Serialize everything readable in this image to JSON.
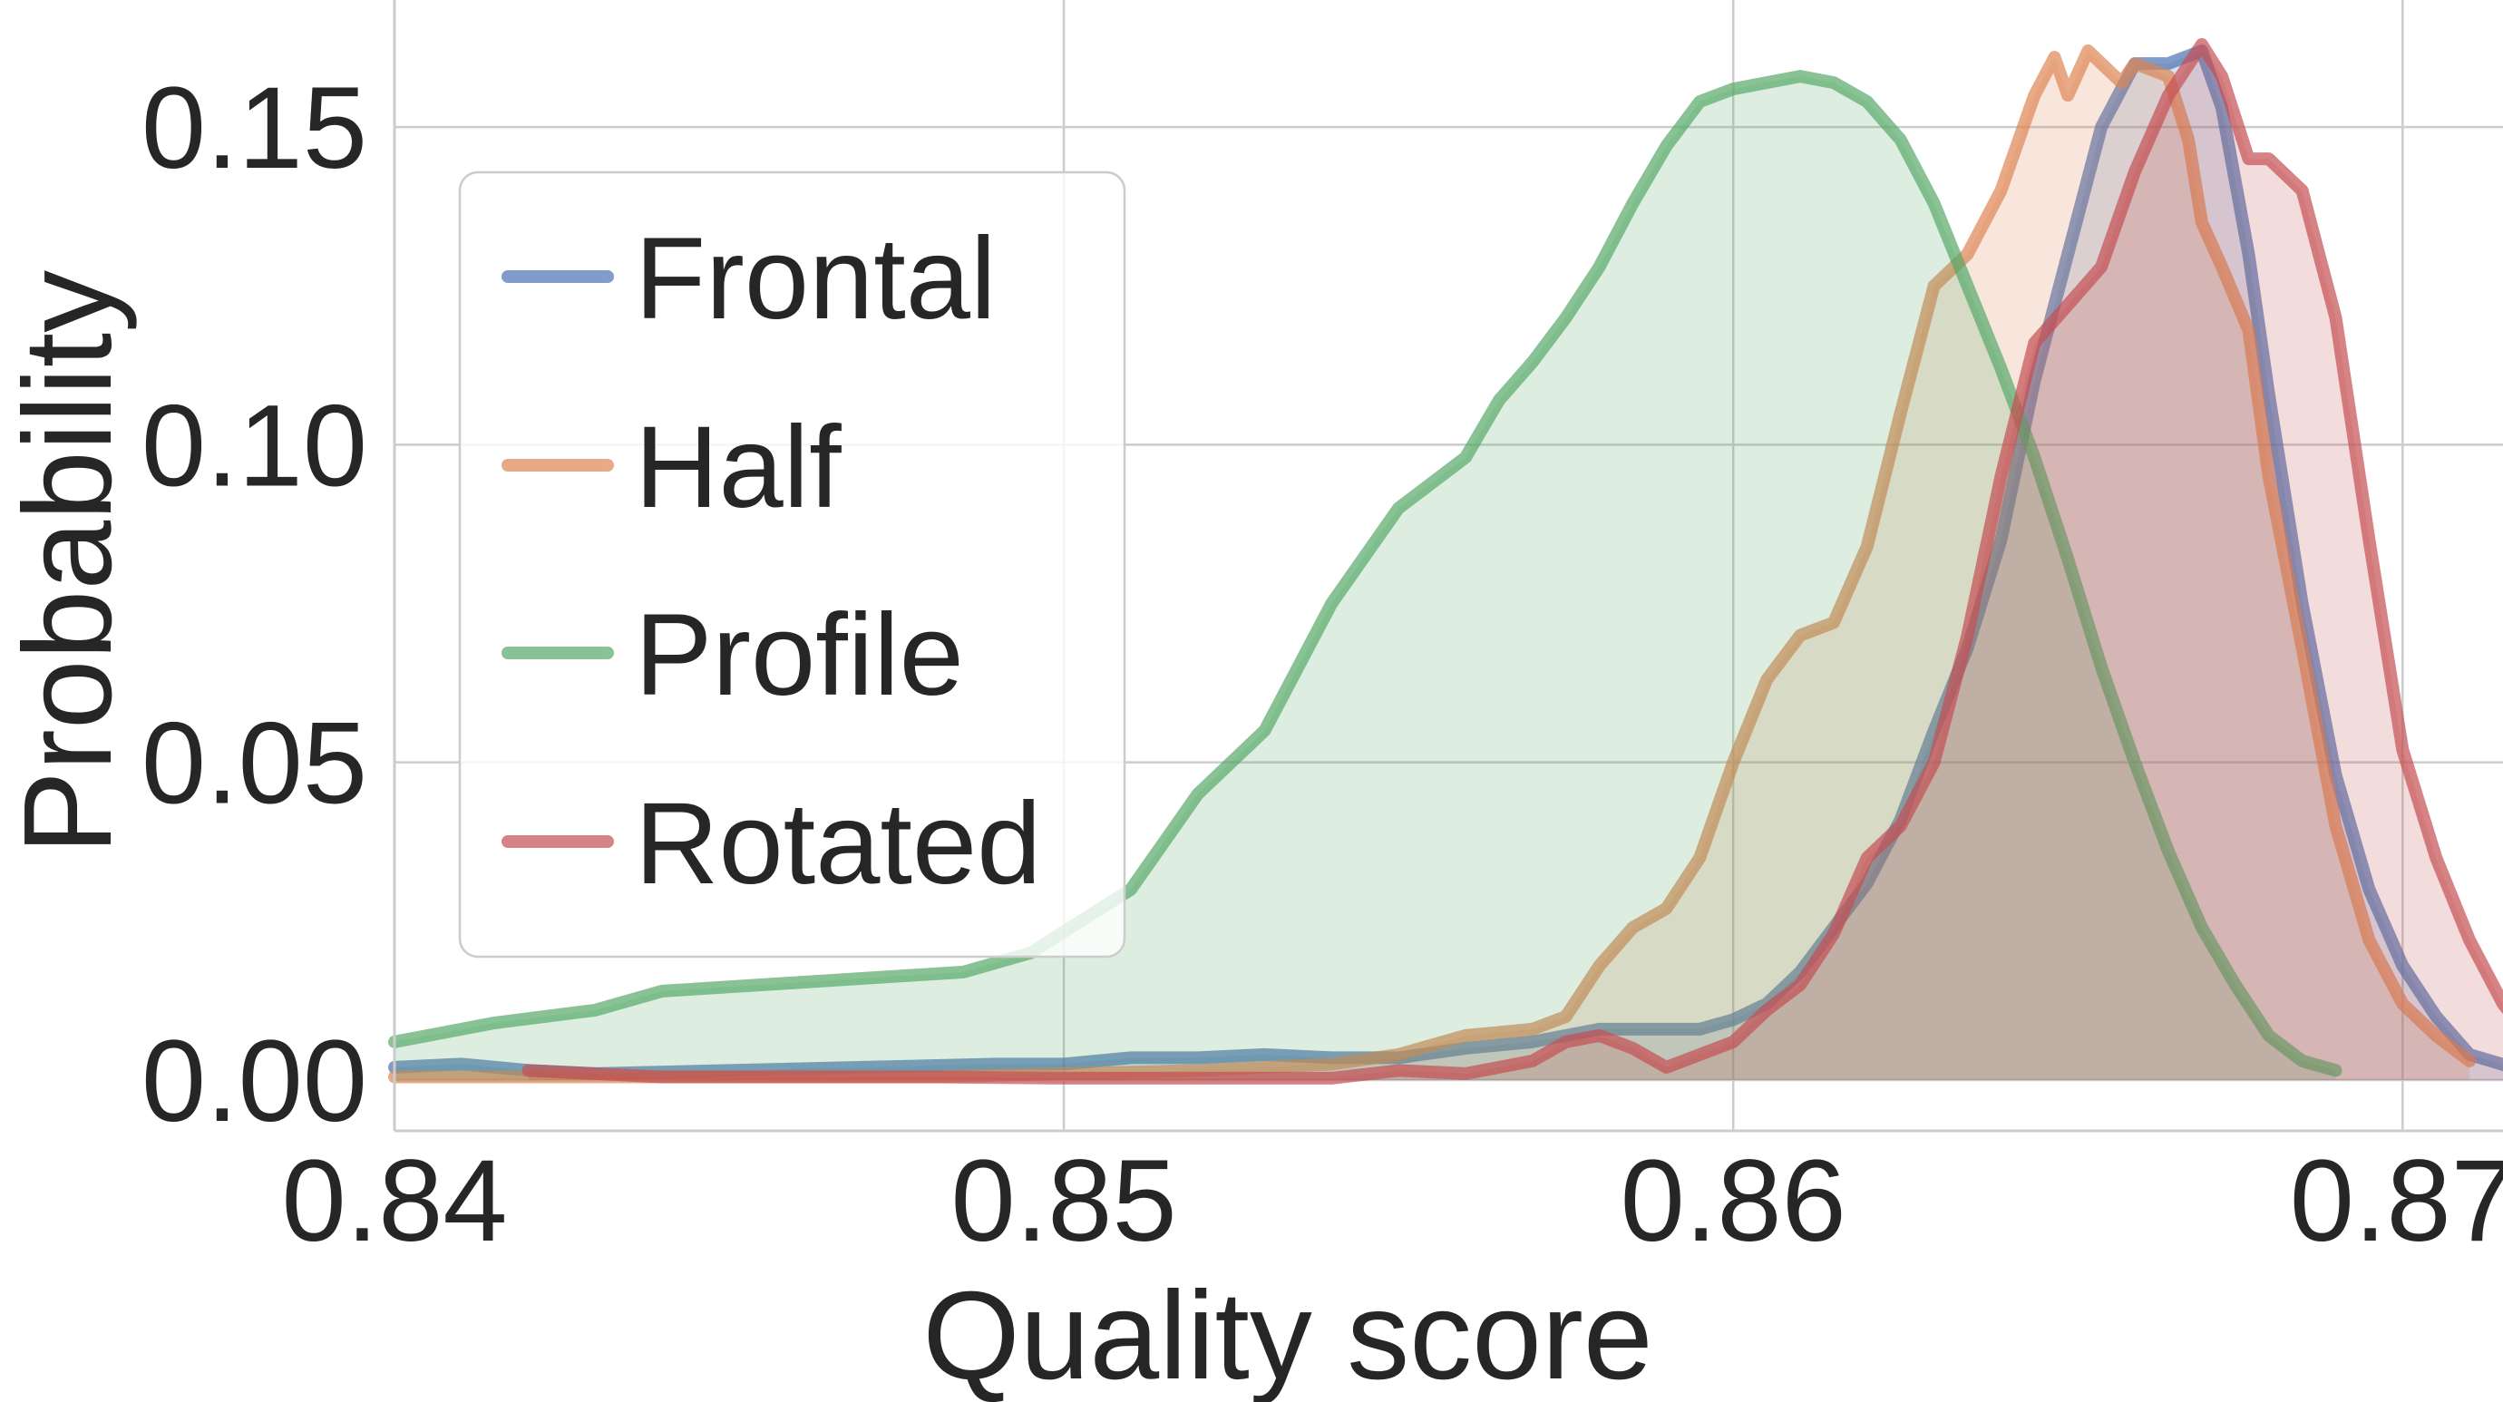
{
  "chart_data": {
    "type": "area",
    "xlabel": "Quality score",
    "ylabel": "Probability",
    "xlim": [
      0.84,
      0.8715
    ],
    "ylim": [
      -0.008,
      0.17
    ],
    "xticks": [
      0.84,
      0.85,
      0.86,
      0.87
    ],
    "yticks": [
      0.0,
      0.05,
      0.1,
      0.15
    ],
    "xtick_labels": [
      "0.84",
      "0.85",
      "0.86",
      "0.87"
    ],
    "ytick_labels": [
      "0.00",
      "0.05",
      "0.10",
      "0.15"
    ],
    "grid": true,
    "legend_position": "upper-left",
    "series": [
      {
        "name": "Frontal",
        "color": "#4c72b0",
        "points": [
          [
            0.84,
            0.002
          ],
          [
            0.841,
            0.0025
          ],
          [
            0.842,
            0.0015
          ],
          [
            0.843,
            0.001
          ],
          [
            0.845,
            0.0015
          ],
          [
            0.847,
            0.002
          ],
          [
            0.849,
            0.0025
          ],
          [
            0.85,
            0.0025
          ],
          [
            0.851,
            0.0035
          ],
          [
            0.852,
            0.0035
          ],
          [
            0.853,
            0.004
          ],
          [
            0.854,
            0.0035
          ],
          [
            0.855,
            0.0035
          ],
          [
            0.856,
            0.005
          ],
          [
            0.857,
            0.006
          ],
          [
            0.8575,
            0.007
          ],
          [
            0.858,
            0.008
          ],
          [
            0.8585,
            0.008
          ],
          [
            0.859,
            0.008
          ],
          [
            0.8595,
            0.008
          ],
          [
            0.86,
            0.0095
          ],
          [
            0.8605,
            0.012
          ],
          [
            0.861,
            0.017
          ],
          [
            0.8615,
            0.024
          ],
          [
            0.862,
            0.031
          ],
          [
            0.8625,
            0.041
          ],
          [
            0.863,
            0.055
          ],
          [
            0.8635,
            0.068
          ],
          [
            0.864,
            0.085
          ],
          [
            0.8645,
            0.11
          ],
          [
            0.865,
            0.13
          ],
          [
            0.8655,
            0.15
          ],
          [
            0.866,
            0.16
          ],
          [
            0.8665,
            0.16
          ],
          [
            0.867,
            0.162
          ],
          [
            0.8673,
            0.153
          ],
          [
            0.8677,
            0.13
          ],
          [
            0.868,
            0.108
          ],
          [
            0.8685,
            0.075
          ],
          [
            0.869,
            0.048
          ],
          [
            0.8695,
            0.03
          ],
          [
            0.87,
            0.018
          ],
          [
            0.8705,
            0.01
          ],
          [
            0.871,
            0.004
          ],
          [
            0.8718,
            0.0015
          ]
        ]
      },
      {
        "name": "Half",
        "color": "#dd8452",
        "points": [
          [
            0.84,
            0.0005
          ],
          [
            0.842,
            0.0005
          ],
          [
            0.845,
            0.0005
          ],
          [
            0.848,
            0.0005
          ],
          [
            0.85,
            0.001
          ],
          [
            0.852,
            0.0015
          ],
          [
            0.854,
            0.0025
          ],
          [
            0.855,
            0.004
          ],
          [
            0.856,
            0.007
          ],
          [
            0.857,
            0.008
          ],
          [
            0.8575,
            0.01
          ],
          [
            0.858,
            0.018
          ],
          [
            0.8585,
            0.024
          ],
          [
            0.859,
            0.027
          ],
          [
            0.8595,
            0.035
          ],
          [
            0.86,
            0.05
          ],
          [
            0.8605,
            0.063
          ],
          [
            0.861,
            0.07
          ],
          [
            0.8615,
            0.072
          ],
          [
            0.862,
            0.084
          ],
          [
            0.8625,
            0.105
          ],
          [
            0.863,
            0.125
          ],
          [
            0.8635,
            0.13
          ],
          [
            0.864,
            0.14
          ],
          [
            0.8645,
            0.155
          ],
          [
            0.8648,
            0.161
          ],
          [
            0.865,
            0.155
          ],
          [
            0.8653,
            0.162
          ],
          [
            0.8658,
            0.157
          ],
          [
            0.866,
            0.16
          ],
          [
            0.8665,
            0.158
          ],
          [
            0.8668,
            0.148
          ],
          [
            0.867,
            0.135
          ],
          [
            0.8673,
            0.128
          ],
          [
            0.8677,
            0.118
          ],
          [
            0.868,
            0.095
          ],
          [
            0.8685,
            0.068
          ],
          [
            0.869,
            0.04
          ],
          [
            0.8695,
            0.022
          ],
          [
            0.87,
            0.012
          ],
          [
            0.8705,
            0.007
          ],
          [
            0.871,
            0.003
          ]
        ]
      },
      {
        "name": "Profile",
        "color": "#55a868",
        "points": [
          [
            0.84,
            0.006
          ],
          [
            0.8415,
            0.009
          ],
          [
            0.843,
            0.011
          ],
          [
            0.844,
            0.014
          ],
          [
            0.8455,
            0.015
          ],
          [
            0.847,
            0.016
          ],
          [
            0.8485,
            0.017
          ],
          [
            0.8495,
            0.02
          ],
          [
            0.851,
            0.03
          ],
          [
            0.852,
            0.045
          ],
          [
            0.853,
            0.055
          ],
          [
            0.8535,
            0.065
          ],
          [
            0.854,
            0.075
          ],
          [
            0.855,
            0.09
          ],
          [
            0.856,
            0.098
          ],
          [
            0.8565,
            0.107
          ],
          [
            0.857,
            0.113
          ],
          [
            0.8575,
            0.12
          ],
          [
            0.858,
            0.128
          ],
          [
            0.8585,
            0.138
          ],
          [
            0.859,
            0.147
          ],
          [
            0.8595,
            0.154
          ],
          [
            0.86,
            0.156
          ],
          [
            0.8605,
            0.157
          ],
          [
            0.861,
            0.158
          ],
          [
            0.8615,
            0.157
          ],
          [
            0.862,
            0.154
          ],
          [
            0.8625,
            0.148
          ],
          [
            0.863,
            0.138
          ],
          [
            0.8635,
            0.125
          ],
          [
            0.864,
            0.112
          ],
          [
            0.8645,
            0.098
          ],
          [
            0.865,
            0.082
          ],
          [
            0.8655,
            0.065
          ],
          [
            0.866,
            0.05
          ],
          [
            0.8665,
            0.036
          ],
          [
            0.867,
            0.024
          ],
          [
            0.8675,
            0.015
          ],
          [
            0.868,
            0.007
          ],
          [
            0.8685,
            0.003
          ],
          [
            0.869,
            0.0015
          ]
        ]
      },
      {
        "name": "Rotated",
        "color": "#c44e52",
        "points": [
          [
            0.842,
            0.0015
          ],
          [
            0.844,
            0.0005
          ],
          [
            0.846,
            0.0005
          ],
          [
            0.848,
            0.0005
          ],
          [
            0.85,
            0.0003
          ],
          [
            0.852,
            0.0003
          ],
          [
            0.854,
            0.0003
          ],
          [
            0.855,
            0.0015
          ],
          [
            0.856,
            0.001
          ],
          [
            0.857,
            0.003
          ],
          [
            0.8575,
            0.006
          ],
          [
            0.858,
            0.007
          ],
          [
            0.8585,
            0.005
          ],
          [
            0.859,
            0.002
          ],
          [
            0.8595,
            0.004
          ],
          [
            0.86,
            0.006
          ],
          [
            0.8605,
            0.011
          ],
          [
            0.861,
            0.015
          ],
          [
            0.8615,
            0.023
          ],
          [
            0.862,
            0.035
          ],
          [
            0.8625,
            0.04
          ],
          [
            0.863,
            0.05
          ],
          [
            0.8635,
            0.07
          ],
          [
            0.864,
            0.095
          ],
          [
            0.8645,
            0.116
          ],
          [
            0.865,
            0.122
          ],
          [
            0.8655,
            0.128
          ],
          [
            0.866,
            0.143
          ],
          [
            0.8665,
            0.155
          ],
          [
            0.867,
            0.163
          ],
          [
            0.8673,
            0.158
          ],
          [
            0.8677,
            0.145
          ],
          [
            0.868,
            0.145
          ],
          [
            0.8685,
            0.14
          ],
          [
            0.869,
            0.12
          ],
          [
            0.8695,
            0.085
          ],
          [
            0.87,
            0.052
          ],
          [
            0.8705,
            0.035
          ],
          [
            0.871,
            0.022
          ],
          [
            0.8715,
            0.012
          ],
          [
            0.8718,
            0.008
          ]
        ]
      }
    ]
  }
}
